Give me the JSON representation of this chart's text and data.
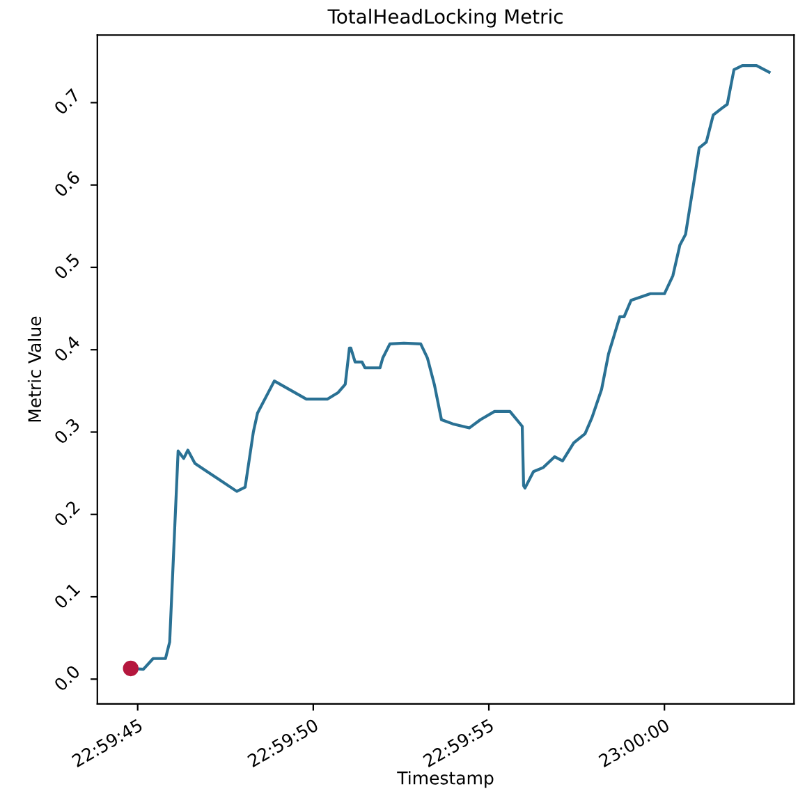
{
  "chart_data": {
    "type": "line",
    "title": "TotalHeadLocking Metric",
    "xlabel": "Timestamp",
    "ylabel": "Metric Value",
    "grid": false,
    "legend": false,
    "xlim": [
      22.995514,
      23.001025
    ],
    "ylim": [
      -0.03,
      0.782
    ],
    "xticks": [
      {
        "value": 22.995833,
        "label": "22:59:45"
      },
      {
        "value": 22.997222,
        "label": "22:59:50"
      },
      {
        "value": 22.998611,
        "label": "22:59:55"
      },
      {
        "value": 23.0,
        "label": "23:00:00"
      }
    ],
    "yticks": [
      {
        "value": 0,
        "label": "0.0"
      },
      0.1,
      0.2,
      0.3,
      0.4,
      0.5,
      0.6,
      0.7
    ],
    "series": [
      {
        "color": "#2a7194",
        "x": [
          22.995778,
          22.995878,
          22.995955,
          22.996053,
          22.996086,
          22.996153,
          22.996197,
          22.99623,
          22.996286,
          22.996372,
          22.996472,
          22.996617,
          22.996683,
          22.996748,
          22.996781,
          22.996914,
          22.997167,
          22.997333,
          22.997419,
          22.997475,
          22.997508,
          22.997519,
          22.997553,
          22.997608,
          22.997631,
          22.99775,
          22.997772,
          22.997828,
          22.997939,
          22.998072,
          22.998125,
          22.998181,
          22.998236,
          22.998325,
          22.998456,
          22.998544,
          22.998656,
          22.998778,
          22.998875,
          22.998886,
          22.998897,
          22.998964,
          22.999042,
          22.999131,
          22.999194,
          22.999283,
          22.999372,
          22.999428,
          22.999503,
          22.999558,
          22.999647,
          22.999681,
          22.999736,
          22.999833,
          22.999889,
          23.0,
          23.000067,
          23.000122,
          23.000167,
          23.000219,
          23.000275,
          23.000331,
          23.000386,
          23.000453,
          23.000497,
          23.00055,
          23.000617,
          23.000728,
          23.000828
        ],
        "values": [
          0.013,
          0.012,
          0.025,
          0.025,
          0.045,
          0.277,
          0.268,
          0.278,
          0.262,
          0.253,
          0.243,
          0.228,
          0.233,
          0.3,
          0.323,
          0.362,
          0.34,
          0.34,
          0.348,
          0.358,
          0.402,
          0.402,
          0.385,
          0.385,
          0.378,
          0.378,
          0.39,
          0.407,
          0.408,
          0.407,
          0.39,
          0.357,
          0.315,
          0.31,
          0.305,
          0.315,
          0.325,
          0.325,
          0.307,
          0.235,
          0.232,
          0.252,
          0.257,
          0.27,
          0.265,
          0.287,
          0.298,
          0.318,
          0.352,
          0.395,
          0.44,
          0.44,
          0.46,
          0.465,
          0.468,
          0.468,
          0.49,
          0.527,
          0.54,
          0.59,
          0.645,
          0.652,
          0.685,
          0.693,
          0.698,
          0.74,
          0.745,
          0.745,
          0.737
        ]
      },
      {
        "type": "scatter",
        "color": "#b5173e",
        "marker": "circle",
        "x": [
          22.995778
        ],
        "values": [
          0.013
        ]
      }
    ]
  }
}
